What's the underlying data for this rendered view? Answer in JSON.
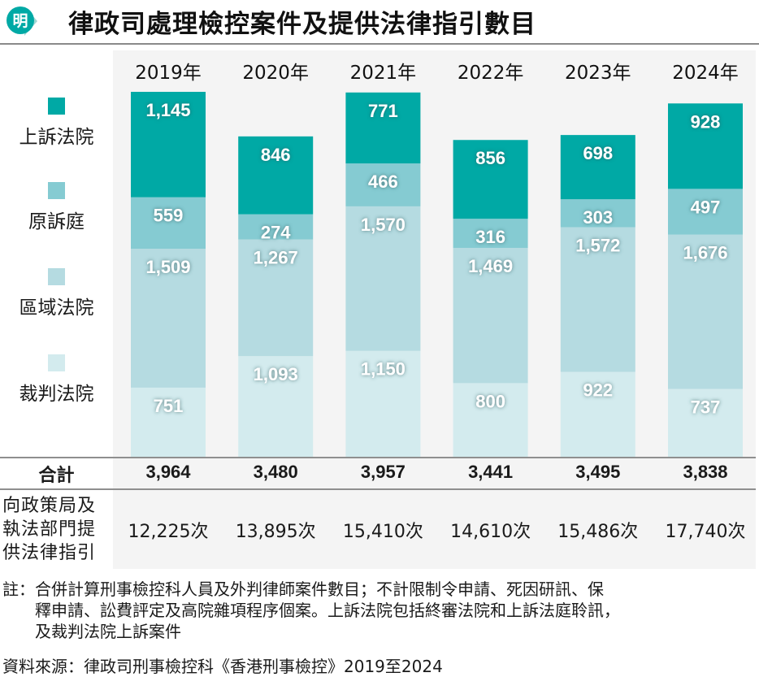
{
  "header": {
    "logo_text": "明",
    "title": "律政司處理檢控案件及提供法律指引數目"
  },
  "colors": {
    "appeal": "#00a9a5",
    "cfi": "#85cbd2",
    "district": "#b5dbe1",
    "magistrates": "#d3ebee",
    "panel": "#f4f4f4"
  },
  "legend": [
    {
      "label": "上訴法院",
      "color_key": "appeal"
    },
    {
      "label": "原訴庭",
      "color_key": "cfi"
    },
    {
      "label": "區域法院",
      "color_key": "district"
    },
    {
      "label": "裁判法院",
      "color_key": "magistrates"
    }
  ],
  "chart_data": {
    "type": "bar",
    "stacked": true,
    "title": "律政司處理檢控案件及提供法律指引數目",
    "categories": [
      "2019年",
      "2020年",
      "2021年",
      "2022年",
      "2023年",
      "2024年"
    ],
    "series": [
      {
        "name": "裁判法院",
        "values": [
          751,
          1093,
          1150,
          800,
          922,
          737
        ],
        "labels": [
          "751",
          "1,093",
          "1,150",
          "800",
          "922",
          "737"
        ]
      },
      {
        "name": "區域法院",
        "values": [
          1509,
          1267,
          1570,
          1469,
          1572,
          1676
        ],
        "labels": [
          "1,509",
          "1,267",
          "1,570",
          "1,469",
          "1,572",
          "1,676"
        ]
      },
      {
        "name": "原訴庭",
        "values": [
          559,
          274,
          466,
          316,
          303,
          497
        ],
        "labels": [
          "559",
          "274",
          "466",
          "316",
          "303",
          "497"
        ]
      },
      {
        "name": "上訴法院",
        "values": [
          1145,
          846,
          771,
          856,
          698,
          928
        ],
        "labels": [
          "1,145",
          "846",
          "771",
          "856",
          "698",
          "928"
        ]
      }
    ],
    "ylim": [
      0,
      4000
    ],
    "grid": false,
    "legend_position": "left",
    "xlabel": "",
    "ylabel": ""
  },
  "table": {
    "total_label": "合計",
    "totals": [
      "3,964",
      "3,480",
      "3,957",
      "3,441",
      "3,495",
      "3,838"
    ],
    "guidance_label_lines": [
      "向政策局及",
      "執法部門提",
      "供法律指引"
    ],
    "guidance": [
      "12,225次",
      "13,895次",
      "15,410次",
      "14,610次",
      "15,486次",
      "17,740次"
    ]
  },
  "notes": {
    "note_prefix": "註：",
    "note_lines": [
      "合併計算刑事檢控科人員及外判律師案件數目；不計限制令申請、死因研訊、保",
      "釋申請、訟費評定及高院雜項程序個案。上訴法院包括終審法院和上訴法庭聆訊，",
      "及裁判法院上訴案件"
    ],
    "source": "資料來源：律政司刑事檢控科《香港刑事檢控》2019至2024"
  }
}
